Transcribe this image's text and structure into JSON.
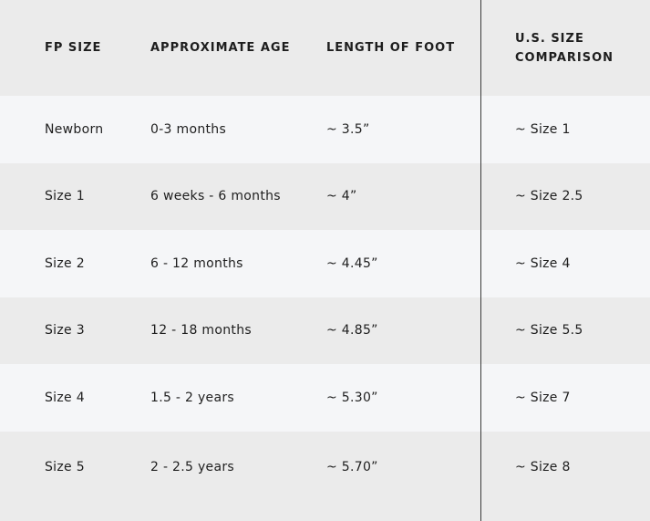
{
  "table": {
    "headers": [
      "FP SIZE",
      "APPROXIMATE AGE",
      "LENGTH OF FOOT",
      "U.S. SIZE COMPARISON"
    ],
    "rows": [
      [
        "Newborn",
        "0-3 months",
        "~ 3.5”",
        "~ Size 1"
      ],
      [
        "Size 1",
        "6 weeks - 6 months",
        "~ 4”",
        "~ Size 2.5"
      ],
      [
        "Size 2",
        "6 - 12 months",
        "~ 4.45”",
        "~ Size 4"
      ],
      [
        "Size 3",
        "12 - 18 months",
        "~ 4.85”",
        "~ Size 5.5"
      ],
      [
        "Size 4",
        "1.5 - 2 years",
        "~ 5.30”",
        "~ Size 7"
      ],
      [
        "Size 5",
        "2 - 2.5 years",
        "~ 5.70”",
        "~ Size 8"
      ]
    ]
  }
}
